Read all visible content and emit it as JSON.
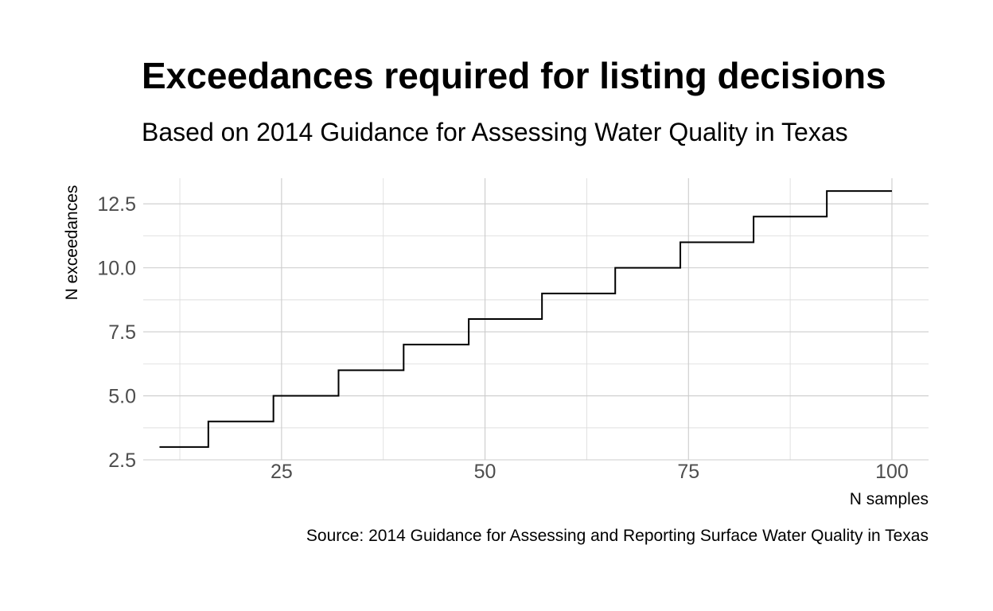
{
  "chart_data": {
    "type": "line",
    "style": "step",
    "title": "Exceedances required for listing decisions",
    "subtitle": "Based on 2014 Guidance for Assessing Water Quality in Texas",
    "caption": "Source: 2014 Guidance for Assessing and Reporting Surface Water Quality in Texas",
    "xlabel": "N samples",
    "ylabel": "N exceedances",
    "xlim": [
      8,
      104.5
    ],
    "ylim": [
      2.5,
      13.5
    ],
    "x_ticks": [
      25,
      50,
      75,
      100
    ],
    "x_tick_labels": [
      "25",
      "50",
      "75",
      "100"
    ],
    "y_ticks": [
      2.5,
      5.0,
      7.5,
      10.0,
      12.5
    ],
    "y_tick_labels": [
      "2.5",
      "5.0",
      "7.5",
      "10.0",
      "12.5"
    ],
    "grid": true,
    "series": [
      {
        "name": "N exceedances",
        "x": [
          10,
          16,
          24,
          32,
          40,
          48,
          57,
          66,
          74,
          83,
          92,
          100
        ],
        "y": [
          3,
          4,
          5,
          6,
          7,
          8,
          9,
          10,
          11,
          12,
          13,
          13
        ]
      }
    ]
  }
}
